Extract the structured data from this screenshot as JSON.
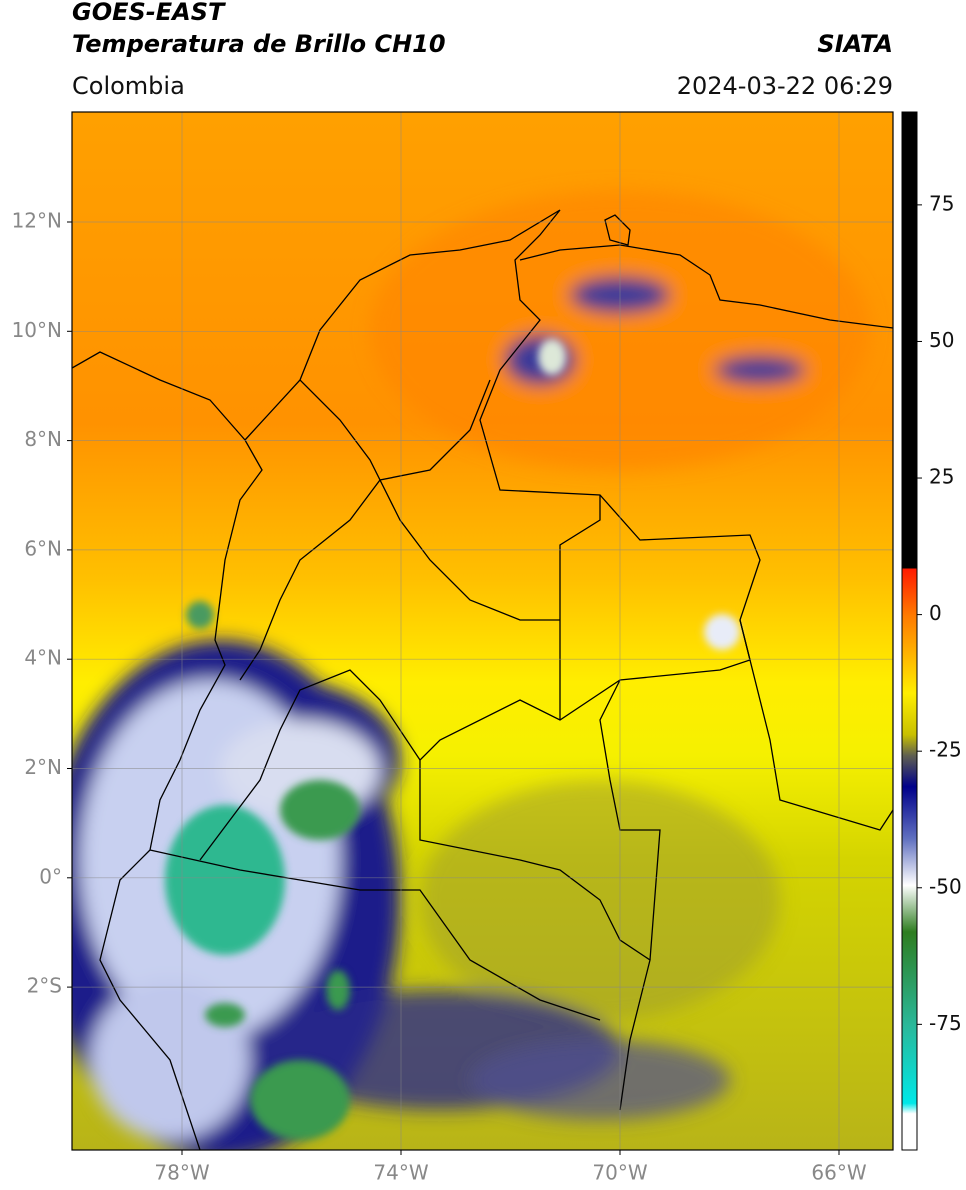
{
  "header": {
    "title": "GOES-EAST",
    "subtitle": "Temperatura de Brillo CH10",
    "region": "Colombia",
    "source": "SIATA",
    "timestamp": "2024-03-22 06:29"
  },
  "map": {
    "lat_labels": [
      "12°N",
      "10°N",
      "8°N",
      "6°N",
      "4°N",
      "2°N",
      "0°",
      "2°S"
    ],
    "lon_labels": [
      "78°W",
      "74°W",
      "70°W",
      "66°W"
    ]
  },
  "colorbar": {
    "lim": [
      -98,
      92
    ],
    "ticks": [
      75,
      50,
      25,
      0,
      -25,
      -50,
      -75
    ]
  }
}
